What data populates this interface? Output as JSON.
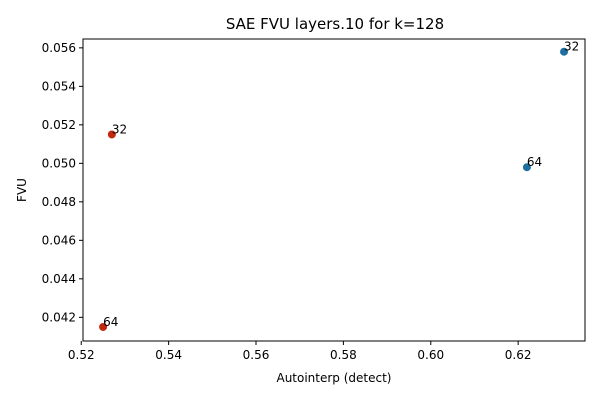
{
  "chart_data": {
    "type": "scatter",
    "title": "SAE FVU layers.10 for k=128",
    "xlabel": "Autointerp (detect)",
    "ylabel": "FVU",
    "xlim": [
      0.5204,
      0.6353
    ],
    "ylim": [
      0.04077,
      0.05646
    ],
    "xticks": [
      "0.52",
      "0.54",
      "0.56",
      "0.58",
      "0.60",
      "0.62"
    ],
    "yticks": [
      "0.042",
      "0.044",
      "0.046",
      "0.048",
      "0.050",
      "0.052",
      "0.054",
      "0.056"
    ],
    "grid": false,
    "series": [
      {
        "color": "#1f6fa0",
        "points": [
          {
            "x": 0.6305,
            "y": 0.0558,
            "label": "32"
          },
          {
            "x": 0.622,
            "y": 0.0498,
            "label": "64"
          }
        ]
      },
      {
        "color": "#c0280f",
        "points": [
          {
            "x": 0.527,
            "y": 0.0515,
            "label": "32"
          },
          {
            "x": 0.525,
            "y": 0.0415,
            "label": "64"
          }
        ]
      }
    ]
  }
}
